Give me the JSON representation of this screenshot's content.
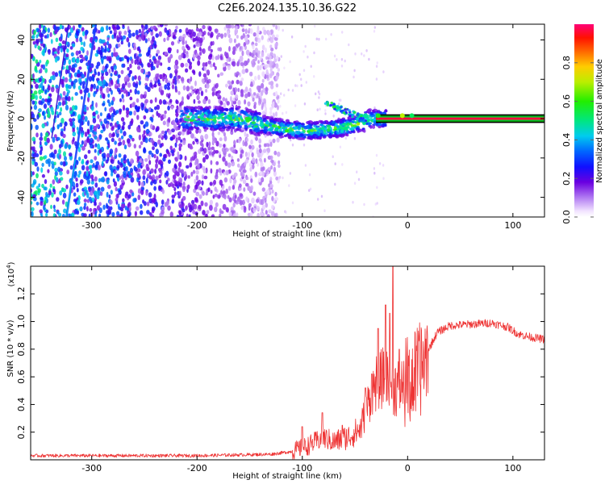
{
  "title": "C2E6.2024.135.10.36.G22",
  "chart_data": [
    {
      "type": "heatmap",
      "name": "spectrogram",
      "xlabel": "Height of straight line (km)",
      "ylabel": "Frequency (Hz)",
      "xlim": [
        -358,
        130
      ],
      "ylim": [
        -50,
        48
      ],
      "xticks": [
        -300,
        -200,
        -100,
        0,
        100
      ],
      "yticks": [
        -40,
        -20,
        0,
        20,
        40
      ],
      "colorbar": {
        "label": "Normalized spectral amplitude",
        "range": [
          0,
          1
        ],
        "ticks": [
          0.0,
          0.2,
          0.4,
          0.6,
          0.8
        ],
        "tick_labels": [
          "0.0",
          "0.2",
          "0.4",
          "0.6",
          "0.8"
        ]
      },
      "features": [
        {
          "name": "noise-region",
          "x_range": [
            -358,
            -122
          ],
          "freq_range": [
            -50,
            48
          ]
        },
        {
          "name": "drift-line-1",
          "points": [
            [
              -324,
              -50
            ],
            [
              -296,
              48
            ]
          ]
        },
        {
          "name": "drift-line-2",
          "points": [
            [
              -338,
              -10
            ],
            [
              -322,
              48
            ]
          ]
        },
        {
          "name": "carrier-band",
          "x_range": [
            -215,
            130
          ],
          "freq_center": 0
        },
        {
          "name": "steady-carrier",
          "x_range": [
            -30,
            130
          ],
          "freq_range": [
            -1.5,
            1.5
          ]
        }
      ]
    },
    {
      "type": "line",
      "name": "snr",
      "xlabel": "Height of straight line (km)",
      "ylabel": "SNR (10 * v/v)",
      "yscale_label": "(x10",
      "yscale_exp": "4",
      "yscale_close": ")",
      "xlim": [
        -358,
        130
      ],
      "ylim": [
        0,
        1.4
      ],
      "xticks": [
        -300,
        -200,
        -100,
        0,
        100
      ],
      "yticks": [
        0.2,
        0.4,
        0.6,
        0.8,
        1.0,
        1.2
      ],
      "ytick_labels": [
        "0.2",
        "0.4",
        "0.6",
        "0.8",
        "1.0",
        "1.2"
      ],
      "color": "#ee3333",
      "profile": [
        [
          -358,
          0.03
        ],
        [
          -200,
          0.03
        ],
        [
          -130,
          0.04
        ],
        [
          -110,
          0.06
        ],
        [
          -95,
          0.1
        ],
        [
          -80,
          0.16
        ],
        [
          -70,
          0.13
        ],
        [
          -55,
          0.17
        ],
        [
          -45,
          0.22
        ],
        [
          -38,
          0.4
        ],
        [
          -30,
          0.55
        ],
        [
          -22,
          0.6
        ],
        [
          -15,
          0.55
        ],
        [
          -8,
          0.52
        ],
        [
          -2,
          0.55
        ],
        [
          5,
          0.58
        ],
        [
          12,
          0.65
        ],
        [
          20,
          0.8
        ],
        [
          28,
          0.92
        ],
        [
          40,
          0.97
        ],
        [
          60,
          0.98
        ],
        [
          80,
          0.99
        ],
        [
          95,
          0.96
        ],
        [
          105,
          0.91
        ],
        [
          115,
          0.89
        ],
        [
          130,
          0.87
        ]
      ],
      "spikes": [
        [
          -100,
          0.24
        ],
        [
          -81,
          0.34
        ],
        [
          -62,
          0.25
        ],
        [
          -40,
          0.52
        ],
        [
          -34,
          0.62
        ],
        [
          -28,
          0.95
        ],
        [
          -21,
          1.12
        ],
        [
          -17,
          1.06
        ],
        [
          -14,
          1.4
        ],
        [
          -8,
          0.8
        ],
        [
          4,
          1.05
        ],
        [
          11,
          1.27
        ],
        [
          16,
          0.9
        ]
      ]
    }
  ]
}
